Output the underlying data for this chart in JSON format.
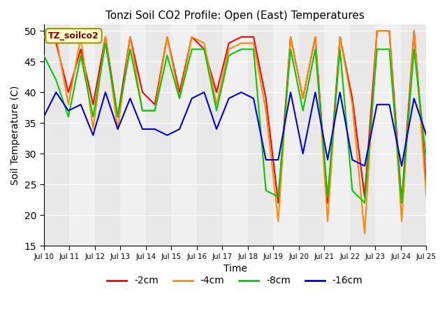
{
  "title": "Tonzi Soil CO2 Profile: Open (East) Temperatures",
  "xlabel": "Time",
  "ylabel": "Soil Temperature (C)",
  "ylim": [
    15,
    51
  ],
  "yticks": [
    15,
    20,
    25,
    30,
    35,
    40,
    45,
    50
  ],
  "legend_label": "TZ_soilco2",
  "series_labels": [
    "-2cm",
    "-4cm",
    "-8cm",
    "-16cm"
  ],
  "series_colors": [
    "#ff0000",
    "#ff8c00",
    "#00cc00",
    "#0000dd"
  ],
  "x_labels": [
    "Jul 10",
    "Jul 11",
    "Jul 12",
    "Jul 13",
    "Jul 14",
    "Jul 15",
    "Jul 16",
    "Jul 17",
    "Jul 18",
    "Jul 19",
    "Jul 20",
    "Jul 21",
    "Jul 22",
    "Jul 23",
    "Jul 24",
    "Jul 25"
  ],
  "band_colors": [
    "#e8e8e8",
    "#f0f0f0"
  ],
  "d_2cm": [
    49,
    48,
    40,
    47,
    38,
    49,
    36,
    49,
    40,
    38,
    49,
    40,
    49,
    47,
    40,
    48,
    49,
    49,
    39,
    22,
    49,
    39,
    49,
    22,
    49,
    39,
    23,
    50,
    50,
    22,
    50,
    25
  ],
  "d_4cm": [
    49,
    49,
    38,
    49,
    34,
    49,
    34,
    49,
    37,
    37,
    49,
    39,
    49,
    48,
    38,
    47,
    48,
    48,
    37,
    19,
    49,
    39,
    49,
    19,
    49,
    38,
    17,
    50,
    50,
    19,
    50,
    23
  ],
  "d_8cm": [
    46,
    42,
    36,
    46,
    36,
    48,
    36,
    47,
    37,
    37,
    46,
    39,
    47,
    47,
    37,
    46,
    47,
    47,
    24,
    23,
    47,
    37,
    47,
    23,
    47,
    24,
    22,
    47,
    47,
    22,
    47,
    29
  ],
  "d_16cm": [
    36,
    40,
    37,
    38,
    33,
    40,
    34,
    39,
    34,
    34,
    33,
    34,
    39,
    40,
    34,
    39,
    40,
    39,
    29,
    29,
    40,
    30,
    40,
    29,
    40,
    29,
    28,
    38,
    38,
    28,
    39,
    33
  ],
  "x_values": [
    0.0,
    0.25,
    0.5,
    0.75,
    1.0,
    1.25,
    1.5,
    1.75,
    2.0,
    2.25,
    2.5,
    2.75,
    3.0,
    3.25,
    3.5,
    3.75,
    4.0,
    4.25,
    4.5,
    4.75,
    5.0,
    5.25,
    5.5,
    5.75,
    6.0,
    6.25,
    6.5,
    6.75,
    7.0,
    7.25,
    7.5,
    7.75
  ]
}
